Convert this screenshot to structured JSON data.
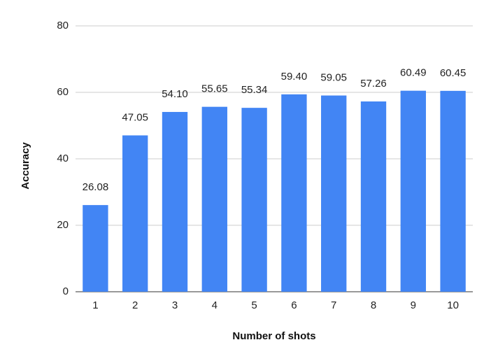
{
  "chart_data": {
    "type": "bar",
    "x_label": "Number of shots",
    "y_label": "Accuracy",
    "categories": [
      "1",
      "2",
      "3",
      "4",
      "5",
      "6",
      "7",
      "8",
      "9",
      "10"
    ],
    "values": [
      26.08,
      47.05,
      54.1,
      55.65,
      55.34,
      59.4,
      59.05,
      57.26,
      60.49,
      60.45
    ],
    "value_labels": [
      "26.08",
      "47.05",
      "54.10",
      "55.65",
      "55.34",
      "59.40",
      "59.05",
      "57.26",
      "60.49",
      "60.45"
    ],
    "color": "#4285f4",
    "ylim": [
      0,
      80
    ],
    "yticks": [
      0,
      20,
      40,
      60,
      80
    ],
    "grid": true
  }
}
